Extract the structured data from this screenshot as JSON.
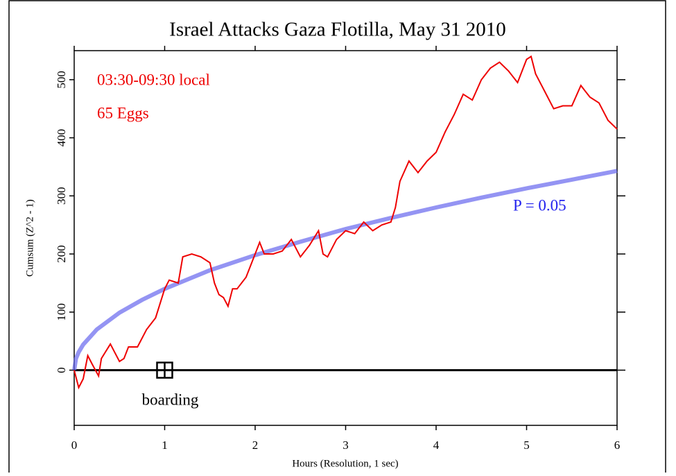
{
  "chart_data": {
    "type": "line",
    "title": "Israel Attacks Gaza Flotilla, May 31 2010",
    "x_label": "Hours (Resolution, 1 sec)",
    "y_label": "Cumsum (Z^2 - 1)",
    "annotations": [
      "03:30-09:30 local",
      "65 Eggs",
      "P = 0.05"
    ],
    "events": [
      {
        "label": "boarding",
        "x": 1,
        "value": 0
      }
    ],
    "xlim": [
      0,
      6
    ],
    "xticks": [
      0,
      1,
      2,
      3,
      4,
      5,
      6
    ],
    "ylim": [
      -95,
      550
    ],
    "yticks": [
      0,
      100,
      200,
      300,
      400,
      500
    ],
    "series": [
      {
        "color": "#ee0000",
        "x": [
          0,
          0.05,
          0.1,
          0.15,
          0.2,
          0.27,
          0.3,
          0.4,
          0.45,
          0.5,
          0.55,
          0.6,
          0.7,
          0.8,
          0.9,
          1.0,
          1.05,
          1.15,
          1.2,
          1.3,
          1.4,
          1.5,
          1.55,
          1.6,
          1.65,
          1.7,
          1.75,
          1.8,
          1.9,
          2.0,
          2.05,
          2.1,
          2.2,
          2.3,
          2.4,
          2.5,
          2.6,
          2.7,
          2.75,
          2.8,
          2.9,
          3.0,
          3.1,
          3.2,
          3.3,
          3.4,
          3.5,
          3.55,
          3.6,
          3.7,
          3.8,
          3.9,
          4.0,
          4.1,
          4.2,
          4.3,
          4.4,
          4.5,
          4.6,
          4.7,
          4.8,
          4.9,
          5.0,
          5.05,
          5.1,
          5.2,
          5.3,
          5.4,
          5.5,
          5.6,
          5.65,
          5.7,
          5.8,
          5.9,
          6.0
        ],
        "values": [
          0,
          -30,
          -15,
          25,
          10,
          -10,
          20,
          45,
          30,
          15,
          20,
          40,
          40,
          70,
          90,
          140,
          155,
          150,
          195,
          200,
          195,
          185,
          150,
          130,
          125,
          110,
          140,
          140,
          160,
          200,
          220,
          200,
          200,
          205,
          225,
          195,
          215,
          240,
          200,
          195,
          225,
          240,
          235,
          255,
          240,
          250,
          255,
          280,
          325,
          360,
          340,
          360,
          375,
          410,
          440,
          475,
          465,
          500,
          520,
          530,
          515,
          495,
          535,
          540,
          510,
          480,
          450,
          455,
          455,
          490,
          480,
          470,
          460,
          430,
          415
        ]
      },
      {
        "color": "#6666ee",
        "x": [
          0,
          0.02,
          0.05,
          0.1,
          0.25,
          0.5,
          0.75,
          1,
          1.5,
          2,
          2.5,
          3,
          3.5,
          4,
          4.5,
          5,
          5.5,
          6
        ],
        "values": [
          0,
          20,
          31,
          44,
          70,
          99,
          121,
          140,
          172,
          198,
          221,
          243,
          262,
          280,
          297,
          313,
          328,
          343
        ]
      }
    ]
  }
}
